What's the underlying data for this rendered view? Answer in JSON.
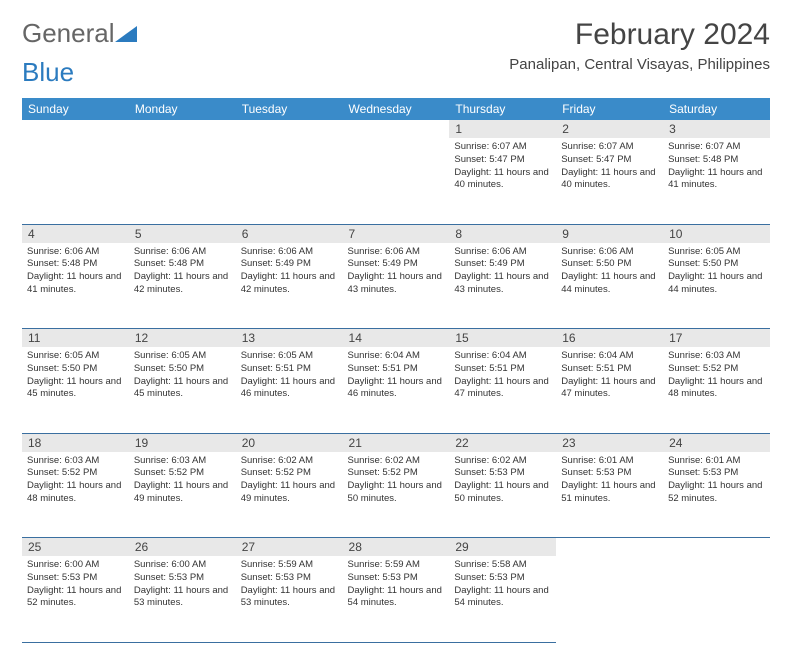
{
  "logo": {
    "text_general": "General",
    "text_blue": "Blue"
  },
  "title": "February 2024",
  "location": "Panalipan, Central Visayas, Philippines",
  "colors": {
    "header_blue": "#3a8bc9",
    "row_border": "#3a6fa0",
    "daynum_bg": "#e8e8e8",
    "logo_blue": "#2b7bbf",
    "text": "#333333",
    "bg": "#ffffff"
  },
  "dow": [
    "Sunday",
    "Monday",
    "Tuesday",
    "Wednesday",
    "Thursday",
    "Friday",
    "Saturday"
  ],
  "weeks": [
    [
      null,
      null,
      null,
      null,
      {
        "n": "1",
        "sr": "6:07 AM",
        "ss": "5:47 PM",
        "dl": "11 hours and 40 minutes."
      },
      {
        "n": "2",
        "sr": "6:07 AM",
        "ss": "5:47 PM",
        "dl": "11 hours and 40 minutes."
      },
      {
        "n": "3",
        "sr": "6:07 AM",
        "ss": "5:48 PM",
        "dl": "11 hours and 41 minutes."
      }
    ],
    [
      {
        "n": "4",
        "sr": "6:06 AM",
        "ss": "5:48 PM",
        "dl": "11 hours and 41 minutes."
      },
      {
        "n": "5",
        "sr": "6:06 AM",
        "ss": "5:48 PM",
        "dl": "11 hours and 42 minutes."
      },
      {
        "n": "6",
        "sr": "6:06 AM",
        "ss": "5:49 PM",
        "dl": "11 hours and 42 minutes."
      },
      {
        "n": "7",
        "sr": "6:06 AM",
        "ss": "5:49 PM",
        "dl": "11 hours and 43 minutes."
      },
      {
        "n": "8",
        "sr": "6:06 AM",
        "ss": "5:49 PM",
        "dl": "11 hours and 43 minutes."
      },
      {
        "n": "9",
        "sr": "6:06 AM",
        "ss": "5:50 PM",
        "dl": "11 hours and 44 minutes."
      },
      {
        "n": "10",
        "sr": "6:05 AM",
        "ss": "5:50 PM",
        "dl": "11 hours and 44 minutes."
      }
    ],
    [
      {
        "n": "11",
        "sr": "6:05 AM",
        "ss": "5:50 PM",
        "dl": "11 hours and 45 minutes."
      },
      {
        "n": "12",
        "sr": "6:05 AM",
        "ss": "5:50 PM",
        "dl": "11 hours and 45 minutes."
      },
      {
        "n": "13",
        "sr": "6:05 AM",
        "ss": "5:51 PM",
        "dl": "11 hours and 46 minutes."
      },
      {
        "n": "14",
        "sr": "6:04 AM",
        "ss": "5:51 PM",
        "dl": "11 hours and 46 minutes."
      },
      {
        "n": "15",
        "sr": "6:04 AM",
        "ss": "5:51 PM",
        "dl": "11 hours and 47 minutes."
      },
      {
        "n": "16",
        "sr": "6:04 AM",
        "ss": "5:51 PM",
        "dl": "11 hours and 47 minutes."
      },
      {
        "n": "17",
        "sr": "6:03 AM",
        "ss": "5:52 PM",
        "dl": "11 hours and 48 minutes."
      }
    ],
    [
      {
        "n": "18",
        "sr": "6:03 AM",
        "ss": "5:52 PM",
        "dl": "11 hours and 48 minutes."
      },
      {
        "n": "19",
        "sr": "6:03 AM",
        "ss": "5:52 PM",
        "dl": "11 hours and 49 minutes."
      },
      {
        "n": "20",
        "sr": "6:02 AM",
        "ss": "5:52 PM",
        "dl": "11 hours and 49 minutes."
      },
      {
        "n": "21",
        "sr": "6:02 AM",
        "ss": "5:52 PM",
        "dl": "11 hours and 50 minutes."
      },
      {
        "n": "22",
        "sr": "6:02 AM",
        "ss": "5:53 PM",
        "dl": "11 hours and 50 minutes."
      },
      {
        "n": "23",
        "sr": "6:01 AM",
        "ss": "5:53 PM",
        "dl": "11 hours and 51 minutes."
      },
      {
        "n": "24",
        "sr": "6:01 AM",
        "ss": "5:53 PM",
        "dl": "11 hours and 52 minutes."
      }
    ],
    [
      {
        "n": "25",
        "sr": "6:00 AM",
        "ss": "5:53 PM",
        "dl": "11 hours and 52 minutes."
      },
      {
        "n": "26",
        "sr": "6:00 AM",
        "ss": "5:53 PM",
        "dl": "11 hours and 53 minutes."
      },
      {
        "n": "27",
        "sr": "5:59 AM",
        "ss": "5:53 PM",
        "dl": "11 hours and 53 minutes."
      },
      {
        "n": "28",
        "sr": "5:59 AM",
        "ss": "5:53 PM",
        "dl": "11 hours and 54 minutes."
      },
      {
        "n": "29",
        "sr": "5:58 AM",
        "ss": "5:53 PM",
        "dl": "11 hours and 54 minutes."
      },
      null,
      null
    ]
  ],
  "labels": {
    "sunrise": "Sunrise:",
    "sunset": "Sunset:",
    "daylight": "Daylight:"
  }
}
